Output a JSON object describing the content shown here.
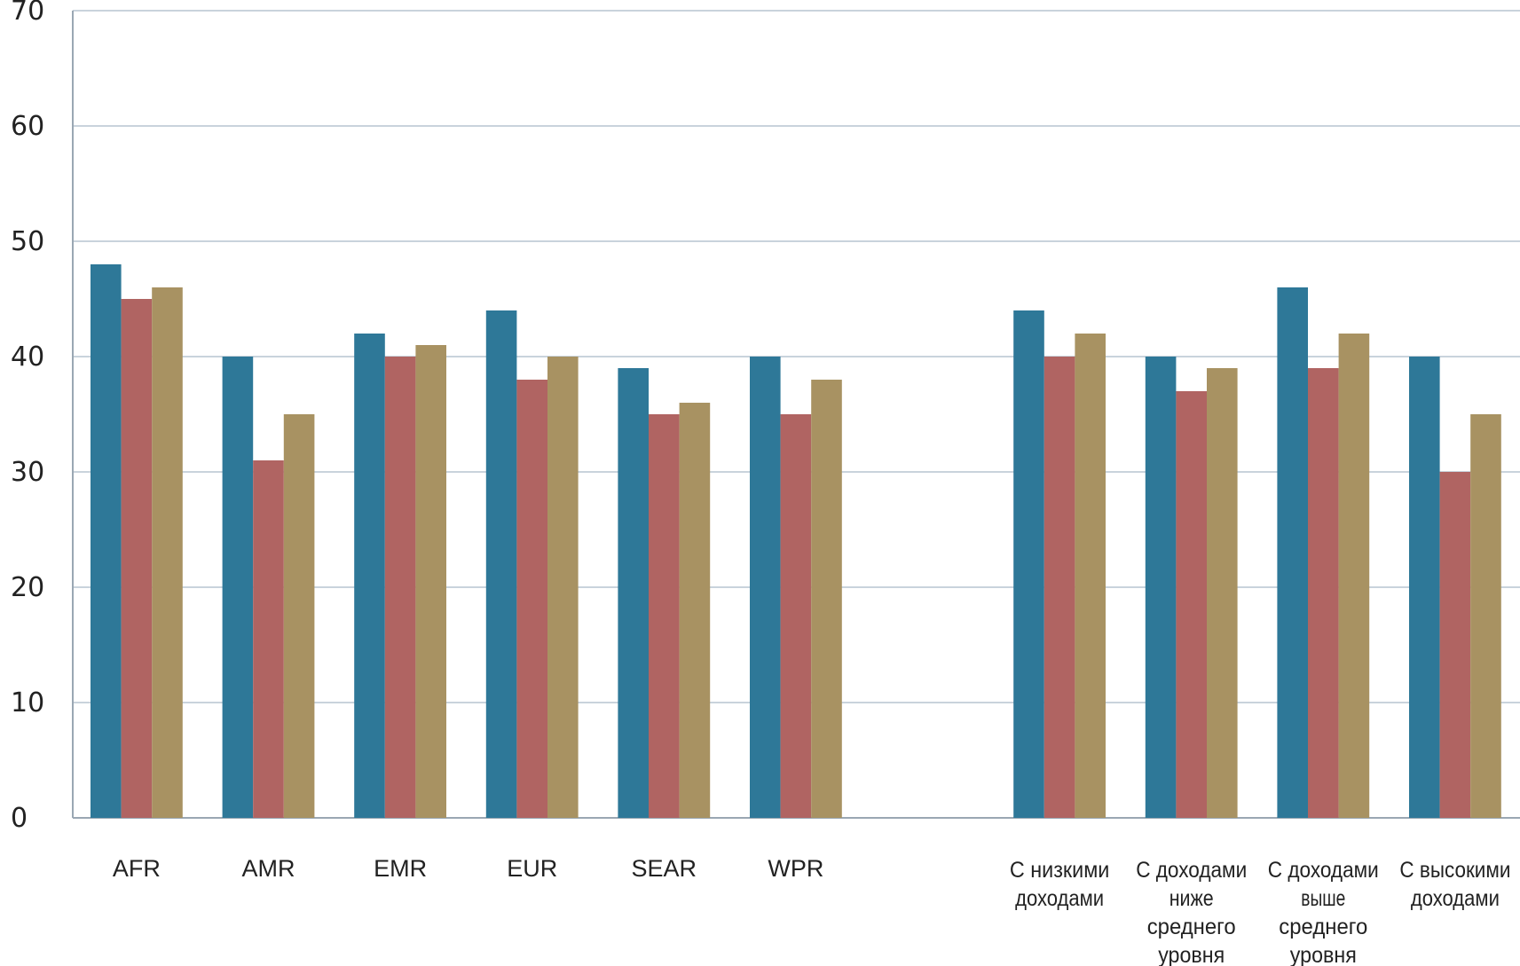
{
  "chart_data": {
    "type": "bar",
    "categories": [
      [
        "AFR"
      ],
      [
        "AMR"
      ],
      [
        "EMR"
      ],
      [
        "EUR"
      ],
      [
        "SEAR"
      ],
      [
        "WPR"
      ],
      [],
      [
        "С низкими",
        "доходами"
      ],
      [
        "С доходами",
        "ниже",
        "среднего",
        "уровня"
      ],
      [
        "С доходами",
        "выше",
        "среднего",
        "уровня"
      ],
      [
        "С высокими",
        "доходами"
      ]
    ],
    "series": [
      {
        "color": "#2e7898",
        "values": [
          48,
          40,
          42,
          44,
          39,
          40,
          null,
          44,
          40,
          46,
          40
        ]
      },
      {
        "color": "#b06462",
        "values": [
          45,
          31,
          40,
          38,
          35,
          35,
          null,
          40,
          37,
          39,
          30
        ]
      },
      {
        "color": "#a89262",
        "values": [
          46,
          35,
          41,
          40,
          36,
          38,
          null,
          42,
          39,
          42,
          35
        ]
      }
    ],
    "title": "",
    "xlabel": "",
    "ylabel": "",
    "ylim": [
      0,
      70
    ],
    "yticks": [
      0,
      10,
      20,
      30,
      40,
      50,
      60,
      70
    ],
    "grid": true,
    "legend": "none",
    "gridColor": "#c9d3dc",
    "axisColor": "#9aa7b3"
  }
}
